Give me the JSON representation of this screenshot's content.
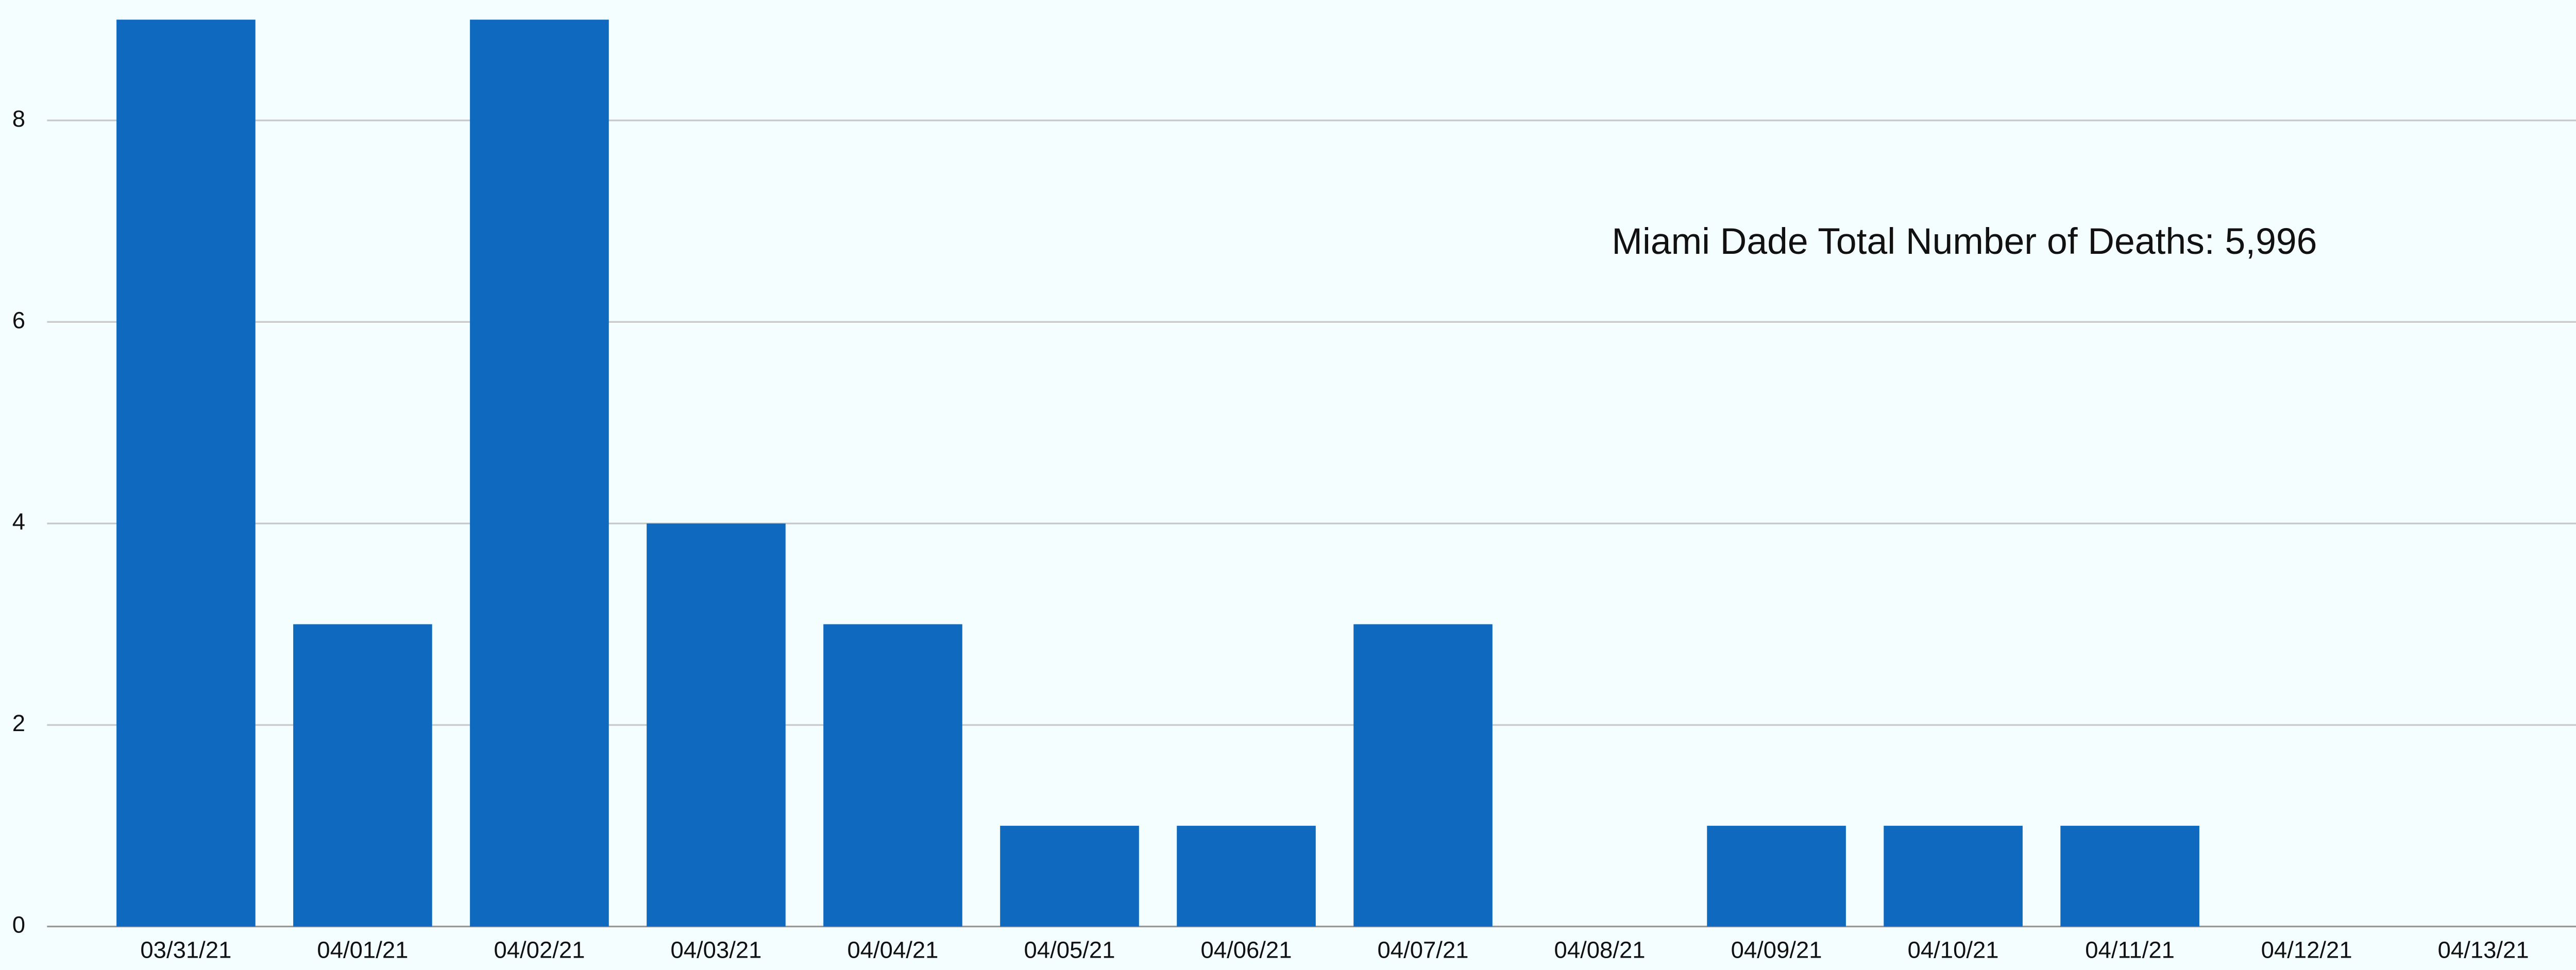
{
  "chart_data": {
    "type": "bar",
    "annotation": "Miami Dade Total Number of Deaths: 5,996",
    "categories": [
      "03/31/21",
      "04/01/21",
      "04/02/21",
      "04/03/21",
      "04/04/21",
      "04/05/21",
      "04/06/21",
      "04/07/21",
      "04/08/21",
      "04/09/21",
      "04/10/21",
      "04/11/21",
      "04/12/21",
      "04/13/21"
    ],
    "values": [
      9,
      3,
      9,
      4,
      3,
      1,
      1,
      3,
      0,
      1,
      1,
      1,
      0,
      0
    ],
    "color": "#0f6abf",
    "ylim": [
      0,
      9
    ],
    "yticks": [
      0,
      2,
      4,
      6,
      8
    ],
    "grid": true
  }
}
